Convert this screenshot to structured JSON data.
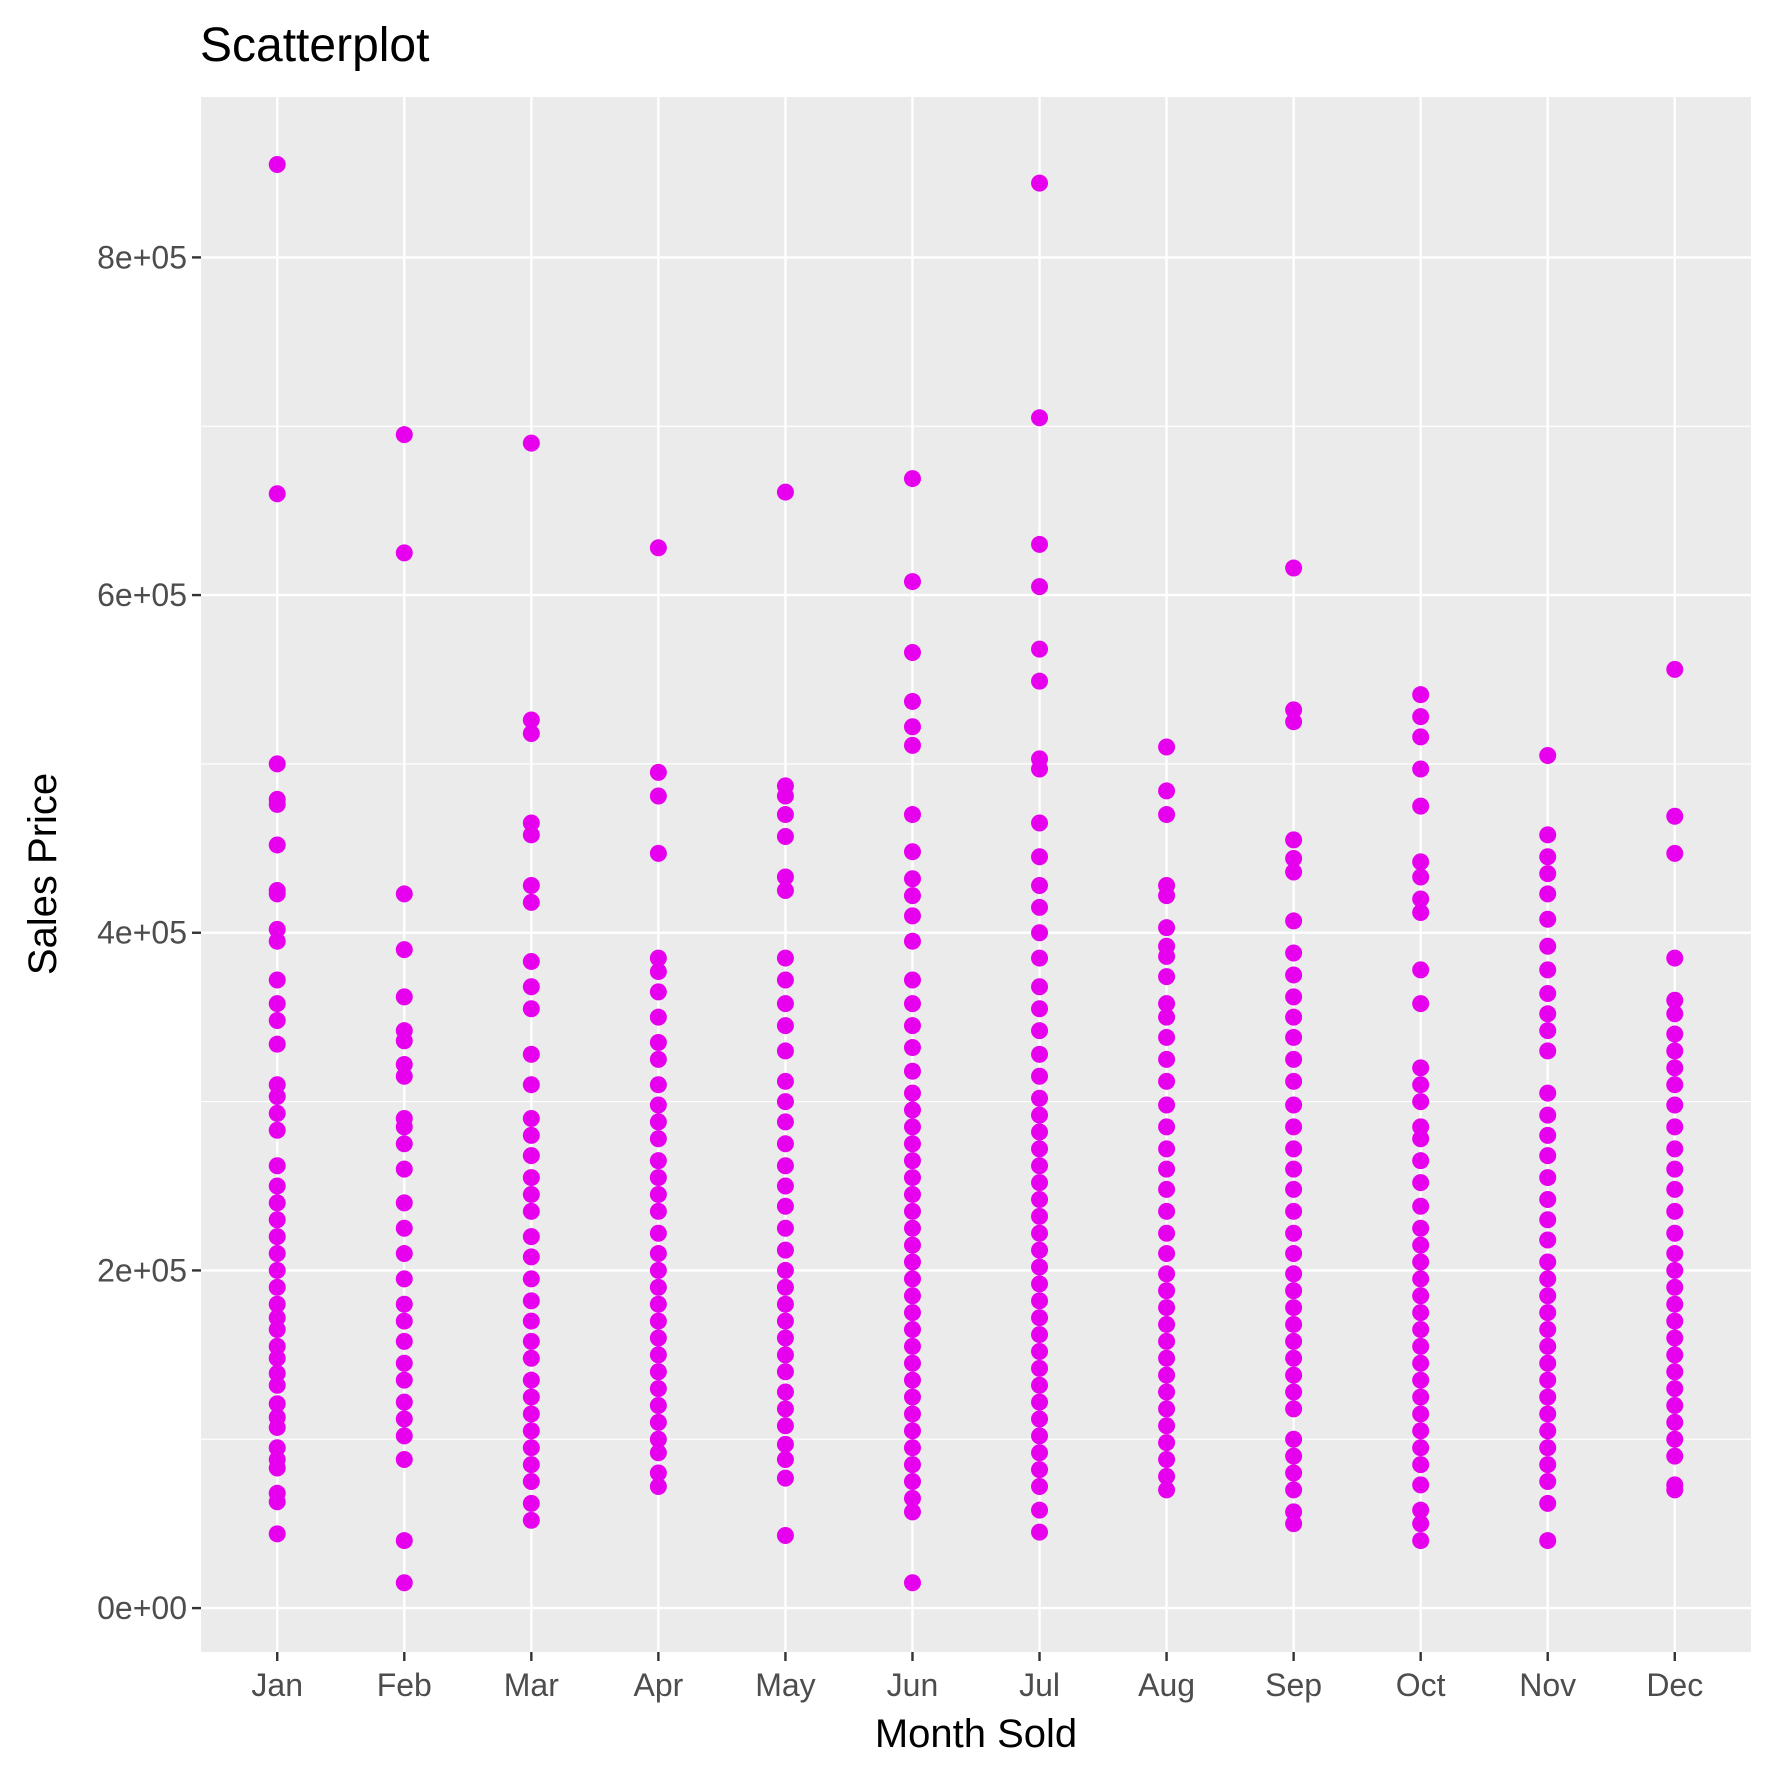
{
  "chart_data": {
    "type": "scatter",
    "title": "Scatterplot",
    "xlabel": "Month Sold",
    "ylabel": "Sales Price",
    "categories": [
      "Jan",
      "Feb",
      "Mar",
      "Apr",
      "May",
      "Jun",
      "Jul",
      "Aug",
      "Sep",
      "Oct",
      "Nov",
      "Dec"
    ],
    "y_ticks": [
      0,
      200000,
      400000,
      600000,
      800000
    ],
    "y_tick_labels": [
      "0e+00",
      "2e+05",
      "4e+05",
      "6e+05",
      "8e+05"
    ],
    "ylim": [
      -26000,
      895000
    ],
    "grid": true,
    "colors": {
      "points": "#E600EE",
      "panel": "#EBEBEB",
      "grid": "#FFFFFF",
      "tick_text": "#4D4D4D"
    },
    "series": [
      {
        "category_values": {
          "Jan": [
            44000,
            63000,
            68000,
            83000,
            88000,
            95000,
            107000,
            113000,
            121000,
            132000,
            139000,
            148000,
            155000,
            165000,
            172000,
            180000,
            190000,
            200000,
            210000,
            220000,
            230000,
            240000,
            250000,
            262000,
            283000,
            293000,
            303000,
            310000,
            334000,
            348000,
            358000,
            372000,
            395000,
            402000,
            423000,
            425000,
            452000,
            476000,
            479000,
            500000,
            660000,
            855000
          ],
          "Feb": [
            15000,
            40000,
            88000,
            102000,
            112000,
            122000,
            135000,
            145000,
            158000,
            170000,
            180000,
            195000,
            210000,
            225000,
            240000,
            260000,
            275000,
            285000,
            290000,
            315000,
            322000,
            336000,
            342000,
            362000,
            390000,
            423000,
            625000,
            695000
          ],
          "Mar": [
            52000,
            62000,
            75000,
            85000,
            95000,
            105000,
            115000,
            125000,
            135000,
            148000,
            158000,
            170000,
            182000,
            195000,
            208000,
            220000,
            235000,
            245000,
            255000,
            268000,
            280000,
            290000,
            310000,
            328000,
            355000,
            368000,
            383000,
            418000,
            428000,
            458000,
            465000,
            518000,
            526000,
            690000
          ],
          "Apr": [
            72000,
            80000,
            92000,
            100000,
            110000,
            120000,
            130000,
            140000,
            150000,
            160000,
            170000,
            180000,
            190000,
            200000,
            210000,
            222000,
            235000,
            245000,
            255000,
            265000,
            278000,
            288000,
            298000,
            310000,
            325000,
            335000,
            350000,
            365000,
            377000,
            385000,
            447000,
            481000,
            495000,
            628000
          ],
          "May": [
            43000,
            77000,
            88000,
            97000,
            108000,
            118000,
            128000,
            140000,
            150000,
            160000,
            170000,
            180000,
            190000,
            200000,
            212000,
            225000,
            238000,
            250000,
            262000,
            275000,
            288000,
            300000,
            312000,
            330000,
            345000,
            358000,
            372000,
            385000,
            425000,
            433000,
            457000,
            470000,
            481000,
            487000,
            661000
          ],
          "Jun": [
            15000,
            57000,
            65000,
            75000,
            85000,
            95000,
            105000,
            115000,
            125000,
            135000,
            145000,
            155000,
            165000,
            175000,
            185000,
            195000,
            205000,
            215000,
            225000,
            235000,
            245000,
            255000,
            265000,
            275000,
            285000,
            295000,
            305000,
            318000,
            332000,
            345000,
            358000,
            372000,
            395000,
            410000,
            422000,
            432000,
            448000,
            470000,
            511000,
            522000,
            537000,
            566000,
            608000,
            669000
          ],
          "Jul": [
            45000,
            58000,
            72000,
            82000,
            92000,
            102000,
            112000,
            122000,
            132000,
            142000,
            152000,
            162000,
            172000,
            182000,
            192000,
            202000,
            212000,
            222000,
            232000,
            242000,
            252000,
            262000,
            272000,
            282000,
            292000,
            302000,
            315000,
            328000,
            342000,
            355000,
            368000,
            385000,
            400000,
            415000,
            428000,
            445000,
            465000,
            497000,
            503000,
            549000,
            568000,
            605000,
            630000,
            705000,
            844000
          ],
          "Aug": [
            70000,
            78000,
            88000,
            98000,
            108000,
            118000,
            128000,
            138000,
            148000,
            158000,
            168000,
            178000,
            188000,
            198000,
            210000,
            222000,
            235000,
            248000,
            260000,
            272000,
            285000,
            298000,
            312000,
            325000,
            338000,
            350000,
            358000,
            374000,
            386000,
            392000,
            403000,
            422000,
            428000,
            470000,
            484000,
            510000
          ],
          "Sep": [
            50000,
            57000,
            70000,
            80000,
            90000,
            100000,
            118000,
            128000,
            138000,
            148000,
            158000,
            168000,
            178000,
            188000,
            198000,
            210000,
            222000,
            235000,
            248000,
            260000,
            272000,
            285000,
            298000,
            312000,
            325000,
            338000,
            350000,
            362000,
            375000,
            388000,
            407000,
            436000,
            444000,
            455000,
            525000,
            532000,
            616000
          ],
          "Oct": [
            40000,
            50000,
            58000,
            73000,
            85000,
            95000,
            105000,
            115000,
            125000,
            135000,
            145000,
            155000,
            165000,
            175000,
            185000,
            195000,
            205000,
            215000,
            225000,
            238000,
            252000,
            265000,
            278000,
            285000,
            300000,
            310000,
            320000,
            358000,
            378000,
            412000,
            420000,
            433000,
            442000,
            475000,
            497000,
            516000,
            528000,
            541000
          ],
          "Nov": [
            40000,
            62000,
            75000,
            85000,
            95000,
            105000,
            115000,
            125000,
            135000,
            145000,
            155000,
            165000,
            175000,
            185000,
            195000,
            205000,
            218000,
            230000,
            242000,
            255000,
            268000,
            280000,
            292000,
            305000,
            330000,
            342000,
            352000,
            364000,
            378000,
            392000,
            408000,
            423000,
            435000,
            445000,
            458000,
            505000
          ],
          "Dec": [
            70000,
            73000,
            90000,
            100000,
            110000,
            120000,
            130000,
            140000,
            150000,
            160000,
            170000,
            180000,
            190000,
            200000,
            210000,
            222000,
            235000,
            248000,
            260000,
            272000,
            285000,
            298000,
            310000,
            320000,
            330000,
            340000,
            352000,
            360000,
            385000,
            447000,
            469000,
            556000
          ]
        }
      }
    ]
  }
}
